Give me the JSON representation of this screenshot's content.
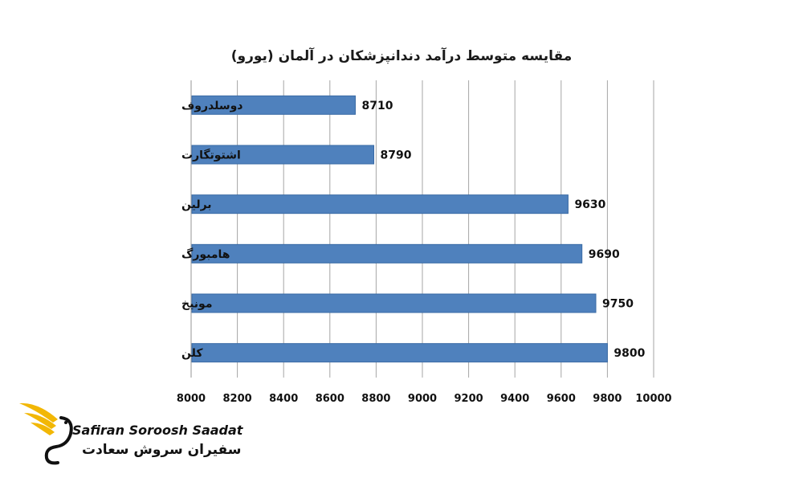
{
  "chart_data": {
    "type": "bar",
    "orientation": "horizontal",
    "title": "مقایسه متوسط درآمد دندانپزشکان در آلمان (یورو)",
    "categories": [
      "دوسلدروف",
      "اشتوتگارت",
      "برلین",
      "هامبورگ",
      "مونیخ",
      "کلن"
    ],
    "values": [
      8710,
      8790,
      9630,
      9690,
      9750,
      9800
    ],
    "xlim": [
      8000,
      10000
    ],
    "xticks": [
      8000,
      8200,
      8400,
      8600,
      8800,
      9000,
      9200,
      9400,
      9600,
      9800,
      10000
    ],
    "grid": "vertical",
    "bar_color": "#4f81bd",
    "bar_edge_color": "#3a6ba5",
    "grid_color": "#a6a6a6"
  },
  "logo": {
    "text_en": "Safiran Soroosh Saadat",
    "text_fa": "سفیران سروش سعادت",
    "accent_color": "#f2b705"
  }
}
